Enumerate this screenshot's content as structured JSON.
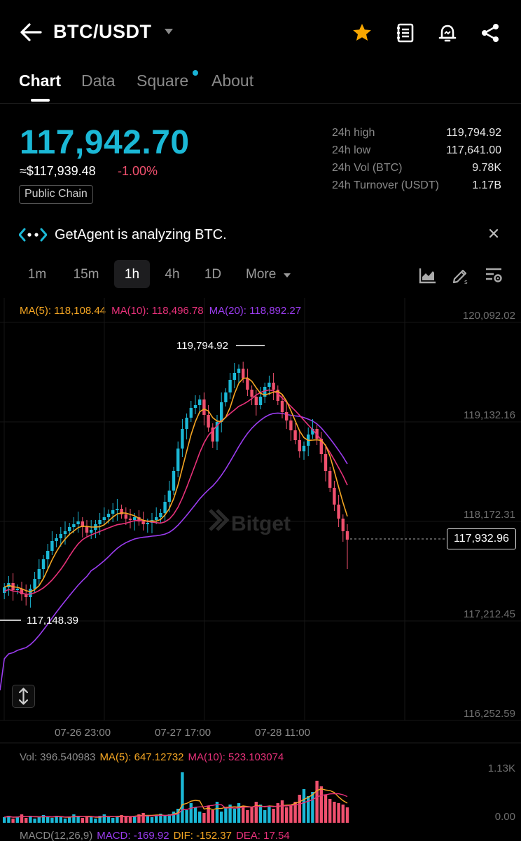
{
  "header": {
    "pair": "BTC/USDT",
    "icons": [
      "back-arrow-icon",
      "caret-down-icon",
      "star-icon",
      "notebook-icon",
      "alert-bell-icon",
      "share-icon"
    ],
    "star_color": "#f7a600"
  },
  "tabs": [
    {
      "label": "Chart",
      "active": true
    },
    {
      "label": "Data",
      "active": false
    },
    {
      "label": "Square",
      "active": false,
      "has_dot": true
    },
    {
      "label": "About",
      "active": false
    }
  ],
  "ticker": {
    "last_price": "117,942.70",
    "usd_price": "≈$117,939.48",
    "change": "-1.00%",
    "badge": "Public Chain",
    "price_color": "#1bb8d6",
    "down_color": "#f0506e"
  },
  "stats": [
    {
      "label": "24h high",
      "value": "119,794.92"
    },
    {
      "label": "24h low",
      "value": "117,641.00"
    },
    {
      "label": "24h Vol (BTC)",
      "value": "9.78K"
    },
    {
      "label": "24h Turnover (USDT)",
      "value": "1.17B"
    }
  ],
  "agent_banner": {
    "text": "GetAgent is analyzing BTC."
  },
  "timeframes": [
    {
      "label": "1m",
      "active": false
    },
    {
      "label": "15m",
      "active": false
    },
    {
      "label": "1h",
      "active": true
    },
    {
      "label": "4h",
      "active": false
    },
    {
      "label": "1D",
      "active": false
    },
    {
      "label": "More",
      "active": false
    }
  ],
  "ma_legend": {
    "ma5": "MA(5): 118,108.44",
    "ma10": "MA(10): 118,496.78",
    "ma20": "MA(20): 118,892.27"
  },
  "chart_data": {
    "type": "candlestick",
    "y_ticks": [
      "120,092.02",
      "119,132.16",
      "118,172.31",
      "117,212.45",
      "116,252.59"
    ],
    "x_ticks": [
      "07-26 23:00",
      "07-27 17:00",
      "07-28 11:00"
    ],
    "ylim": [
      116252.59,
      120092.02
    ],
    "high_marker": "119,794.92",
    "low_marker": "117,148.39",
    "current_price": "117,932.96",
    "watermark": "Bitget",
    "up_color": "#1bb8d6",
    "down_color": "#f0506e",
    "ma5_color": "#f5a623",
    "ma10_color": "#e8317a",
    "ma20_color": "#9b3cf0"
  },
  "volume": {
    "vol": "Vol: 396.540983",
    "ma5": "MA(5): 647.12732",
    "ma10": "MA(10): 523.103074",
    "y_ticks": [
      "1.13K",
      "0.00"
    ]
  },
  "macd": {
    "label": "MACD(12,26,9)",
    "macd": "MACD: -169.92",
    "dif": "DIF: -152.37",
    "dea": "DEA: 17.54"
  }
}
